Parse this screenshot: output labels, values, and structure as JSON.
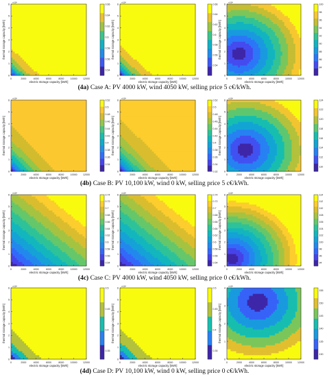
{
  "labels": {
    "xlabel": "electric storage capacity [kWh]",
    "ylabel": "thermal storage capacity [kWh]",
    "exponent": "×10⁴",
    "x_ticks": [
      "0",
      "2000",
      "4000",
      "6000",
      "8000",
      "10000",
      "12000"
    ]
  },
  "colors": {
    "parula_low": "#3e26a8",
    "parula_mid": "#2fb5b5",
    "parula_high": "#f9fb0e",
    "contour_line": "#333333"
  },
  "chart_data": [
    {
      "case": "4a",
      "caption_tag": "(4a)",
      "caption_text": " Case A: PV 4000 kW, wind 4050 kW, selling price 5 c€/kWh.",
      "panels": [
        {
          "type": "heatmap",
          "xlim": [
            0,
            12000
          ],
          "ylim": [
            0,
            6
          ],
          "field": "self",
          "z_at_origin": 0.53,
          "z_plateau": 0.66,
          "decay_x": 2200,
          "decay_y": 1.1,
          "colorbar_ticks": [
            0.54,
            0.56,
            0.58,
            0.6,
            0.62,
            0.64,
            0.66
          ]
        },
        {
          "type": "heatmap",
          "xlim": [
            0,
            12000
          ],
          "ylim": [
            0,
            6
          ],
          "field": "self",
          "z_at_origin": 0.52,
          "z_plateau": 0.66,
          "decay_x": 2500,
          "decay_y": 1.2,
          "colorbar_ticks": [
            0.54,
            0.56,
            0.58,
            0.6,
            0.62,
            0.64,
            0.66
          ]
        },
        {
          "type": "heatmap",
          "xlim": [
            0,
            12000
          ],
          "ylim": [
            0,
            6
          ],
          "field": "bowl",
          "z_min": 82,
          "z_max": 100,
          "center": [
            2000,
            1.8
          ],
          "colorbar_ticks": [
            84,
            86,
            88,
            90,
            92,
            94,
            96,
            98,
            100
          ]
        }
      ]
    },
    {
      "case": "4b",
      "caption_tag": "(4b)",
      "caption_text": " Case B: PV 10,100 kW, wind 0 kW, selling price 5 c€/kWh.",
      "panels": [
        {
          "type": "heatmap",
          "xlim": [
            0,
            12000
          ],
          "ylim": [
            0,
            6
          ],
          "field": "self",
          "z_at_origin": 0.32,
          "z_plateau": 0.5,
          "decay_x": 3000,
          "decay_y": 1.6,
          "colorbar_ticks": [
            0.34,
            0.36,
            0.38,
            0.4,
            0.42,
            0.44,
            0.46,
            0.48,
            0.5,
            0.52
          ]
        },
        {
          "type": "heatmap",
          "xlim": [
            0,
            12000
          ],
          "ylim": [
            0,
            6
          ],
          "field": "self",
          "z_at_origin": 0.32,
          "z_plateau": 0.5,
          "decay_x": 3200,
          "decay_y": 1.7,
          "colorbar_ticks": [
            0.32,
            0.34,
            0.36,
            0.38,
            0.4,
            0.42,
            0.44,
            0.46,
            0.48,
            0.5,
            0.52
          ]
        },
        {
          "type": "heatmap",
          "xlim": [
            0,
            12000
          ],
          "ylim": [
            0,
            6
          ],
          "field": "bowl",
          "z_min": 109,
          "z_max": 124,
          "center": [
            3000,
            1.8
          ],
          "colorbar_ticks": [
            110,
            112,
            114,
            116,
            118,
            120,
            122,
            124
          ]
        }
      ]
    },
    {
      "case": "4c",
      "caption_tag": "(4c)",
      "caption_text": " Case C: PV 4000 kW, wind 4050 kW, selling price 0 c€/kWh.",
      "panels": [
        {
          "type": "heatmap",
          "xlim": [
            0,
            12000
          ],
          "ylim": [
            0,
            6
          ],
          "field": "diag",
          "z_at_origin": 0.53,
          "z_plateau": 0.74,
          "colorbar_ticks": [
            0.54,
            0.56,
            0.58,
            0.6,
            0.62,
            0.64,
            0.66,
            0.68,
            0.7,
            0.72,
            0.74
          ]
        },
        {
          "type": "heatmap",
          "xlim": [
            0,
            12000
          ],
          "ylim": [
            0,
            6
          ],
          "field": "diag",
          "z_at_origin": 0.53,
          "z_plateau": 0.74,
          "colorbar_ticks": [
            0.54,
            0.56,
            0.58,
            0.6,
            0.62,
            0.64,
            0.66,
            0.68,
            0.7,
            0.72,
            0.74
          ]
        },
        {
          "type": "heatmap",
          "xlim": [
            0,
            12000
          ],
          "ylim": [
            0,
            6
          ],
          "field": "bowl",
          "z_min": 93,
          "z_max": 114,
          "center": [
            800,
            0.6
          ],
          "colorbar_ticks": [
            94,
            96,
            98,
            100,
            102,
            104,
            106,
            108,
            110,
            112,
            114
          ]
        }
      ]
    },
    {
      "case": "4d",
      "caption_tag": "(4d)",
      "caption_text": " Case D: PV 10,100 kW, wind 0 kW, selling price 0 c€/kWh.",
      "panels": [
        {
          "type": "heatmap",
          "xlim": [
            0,
            12000
          ],
          "ylim": [
            0,
            6
          ],
          "field": "self",
          "z_at_origin": 0.33,
          "z_plateau": 0.5,
          "decay_x": 3000,
          "decay_y": 1.6,
          "colorbar_ticks": [
            0.35,
            0.4,
            0.45,
            0.5
          ]
        },
        {
          "type": "heatmap",
          "xlim": [
            0,
            12000
          ],
          "ylim": [
            0,
            6
          ],
          "field": "self",
          "z_at_origin": 0.33,
          "z_plateau": 0.5,
          "decay_x": 3200,
          "decay_y": 1.6,
          "colorbar_ticks": [
            0.35,
            0.4,
            0.45,
            0.5
          ]
        },
        {
          "type": "heatmap",
          "xlim": [
            0,
            12000
          ],
          "ylim": [
            0,
            4
          ],
          "field": "bowl",
          "z_min": 128,
          "z_max": 156,
          "center": [
            5000,
            3.2
          ],
          "colorbar_ticks": [
            130,
            135,
            140,
            145,
            150,
            155
          ]
        }
      ]
    }
  ]
}
